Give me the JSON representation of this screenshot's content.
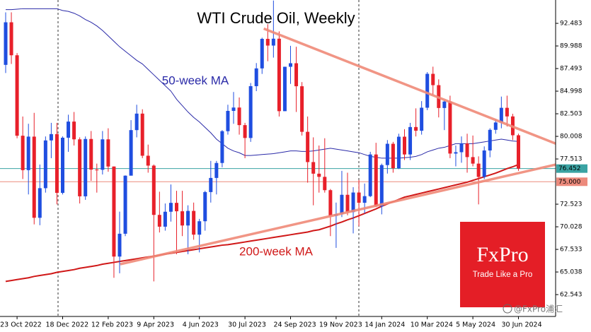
{
  "chart_data": {
    "type": "candlestick",
    "title": "WTI Crude Oil, Weekly",
    "categories": [
      null,
      null,
      "23 Oct 2022",
      null,
      null,
      null,
      null,
      null,
      null,
      null,
      "18 Dec 2022",
      null,
      null,
      null,
      null,
      null,
      null,
      null,
      "12 Feb 2023",
      null,
      null,
      null,
      null,
      null,
      null,
      null,
      "9 Apr 2023",
      null,
      null,
      null,
      null,
      null,
      null,
      null,
      "4 Jun 2023",
      null,
      null,
      null,
      null,
      null,
      null,
      null,
      "30 Jul 2023",
      null,
      null,
      null,
      null,
      null,
      null,
      null,
      "24 Sep 2023",
      null,
      null,
      null,
      null,
      null,
      null,
      null,
      "19 Nov 2023",
      null,
      null,
      null,
      null,
      null,
      null,
      null,
      "14 Jan 2024",
      null,
      null,
      null,
      null,
      null,
      null,
      null,
      "10 Mar 2024",
      null,
      null,
      null,
      null,
      null,
      null,
      null,
      "5 May 2024",
      null,
      null,
      null,
      null,
      null,
      null,
      null,
      "30 Jun 2024"
    ],
    "candles": {
      "up_color": "#1f4ee0",
      "down_color": "#e8202a",
      "open": [
        87.9,
        92.6,
        88.96,
        80.08,
        76.28,
        79.98,
        71.02,
        74.29,
        79.56,
        80.26,
        73.77,
        79.86,
        81.64,
        79.68,
        73.39,
        79.72,
        76.34,
        76.32,
        79.68,
        76.68,
        66.74,
        69.26,
        75.67,
        80.7,
        82.52,
        77.87,
        76.78,
        71.34,
        70.04,
        71.69,
        72.67,
        71.74,
        70.17,
        71.78,
        69.16,
        70.64,
        73.86,
        75.42,
        77.07,
        80.58,
        82.82,
        83.19,
        81.25,
        79.83,
        85.55,
        87.51,
        90.77,
        90.03,
        90.79,
        82.79,
        87.69,
        88.08,
        85.54,
        80.51,
        77.17,
        75.89,
        75.54,
        74.07,
        71.23,
        71.43,
        73.56,
        71.65,
        73.81,
        72.68,
        73.41,
        78.01,
        72.28,
        76.84,
        79.19,
        76.49,
        79.97,
        78.01,
        81.04,
        80.63,
        83.17,
        86.91,
        85.66,
        83.14,
        83.85,
        78.11,
        78.26,
        79.23,
        77.72,
        77.0,
        75.53,
        78.45,
        80.73,
        81.54,
        83.16,
        82.21,
        80.13
      ],
      "high": [
        93.7,
        93.7,
        89.2,
        82.2,
        81.4,
        82.6,
        76.9,
        80.0,
        81.5,
        81.5,
        80.0,
        82.4,
        82.7,
        79.9,
        80.0,
        80.6,
        77.0,
        80.6,
        80.9,
        76.7,
        71.7,
        75.7,
        81.8,
        83.5,
        83.0,
        79.1,
        76.9,
        73.9,
        72.6,
        74.7,
        74.0,
        74.0,
        72.4,
        72.7,
        70.9,
        74.0,
        77.3,
        77.3,
        80.7,
        83.5,
        84.9,
        84.3,
        81.5,
        85.9,
        88.1,
        90.9,
        92.4,
        95.0,
        91.6,
        87.7,
        90.0,
        89.9,
        86.0,
        82.2,
        79.9,
        79.0,
        79.8,
        74.2,
        72.7,
        76.2,
        76.0,
        74.4,
        75.2,
        74.8,
        78.3,
        79.3,
        77.0,
        79.6,
        79.4,
        80.3,
        80.8,
        81.5,
        83.1,
        83.9,
        87.1,
        87.7,
        86.3,
        84.0,
        84.5,
        79.0,
        80.0,
        80.3,
        80.1,
        77.8,
        78.9,
        80.9,
        81.9,
        84.4,
        84.5,
        82.5,
        80.3
      ],
      "low": [
        87.0,
        88.0,
        79.8,
        75.3,
        73.6,
        70.3,
        70.2,
        73.8,
        77.6,
        72.5,
        73.6,
        78.3,
        79.0,
        72.6,
        73.0,
        75.1,
        73.8,
        75.8,
        76.1,
        64.4,
        64.9,
        69.0,
        75.7,
        79.9,
        77.6,
        76.0,
        64.0,
        69.4,
        69.6,
        70.6,
        67.0,
        69.0,
        67.0,
        68.6,
        67.2,
        69.6,
        72.7,
        73.6,
        76.6,
        80.2,
        81.4,
        80.2,
        77.6,
        79.4,
        85.0,
        86.9,
        88.3,
        88.7,
        82.2,
        82.8,
        85.8,
        82.7,
        80.1,
        74.9,
        72.4,
        73.8,
        73.8,
        69.0,
        67.7,
        71.1,
        71.3,
        69.3,
        70.1,
        71.5,
        73.3,
        72.2,
        71.4,
        75.9,
        76.0,
        76.4,
        77.4,
        77.4,
        80.0,
        80.2,
        82.9,
        84.6,
        82.1,
        80.7,
        77.6,
        76.7,
        77.1,
        76.0,
        76.7,
        72.5,
        75.3,
        77.7,
        80.3,
        80.9,
        81.1,
        79.6,
        76.2
      ],
      "close": [
        92.6,
        88.96,
        80.08,
        76.28,
        79.98,
        71.02,
        74.29,
        79.56,
        80.26,
        73.77,
        79.86,
        81.64,
        79.68,
        73.39,
        79.72,
        76.34,
        76.32,
        79.68,
        76.68,
        66.74,
        69.26,
        75.67,
        80.7,
        82.52,
        77.87,
        76.78,
        71.34,
        70.04,
        71.69,
        72.67,
        71.74,
        70.17,
        71.78,
        69.16,
        70.64,
        73.86,
        75.42,
        77.07,
        80.58,
        82.82,
        83.19,
        81.25,
        79.83,
        85.55,
        87.51,
        90.77,
        90.03,
        90.79,
        82.79,
        87.69,
        88.08,
        85.54,
        80.51,
        77.17,
        75.89,
        75.54,
        74.07,
        71.23,
        71.43,
        73.56,
        71.65,
        73.81,
        72.68,
        73.41,
        78.01,
        72.28,
        76.84,
        79.19,
        76.49,
        79.97,
        78.01,
        81.04,
        80.63,
        83.17,
        86.91,
        85.66,
        83.14,
        83.85,
        78.11,
        78.26,
        79.23,
        77.72,
        77.0,
        75.53,
        78.45,
        80.73,
        81.54,
        83.16,
        82.21,
        80.13,
        76.45
      ]
    },
    "series": [
      {
        "name": "50-week MA",
        "color": "#2a2aa8",
        "values": [
          94.0,
          94.0,
          94.05,
          94.1,
          94.1,
          94.1,
          94.1,
          94.1,
          94.1,
          94.1,
          93.9,
          93.8,
          93.6,
          93.3,
          92.9,
          92.6,
          92.2,
          91.7,
          91.1,
          90.5,
          89.9,
          89.4,
          88.9,
          88.4,
          88.0,
          87.4,
          86.8,
          86.2,
          85.6,
          85.0,
          84.1,
          83.4,
          82.7,
          82.1,
          81.6,
          81.0,
          80.4,
          79.7,
          79.2,
          78.7,
          78.4,
          78.2,
          77.9,
          77.9,
          77.95,
          78.0,
          78.05,
          78.1,
          78.2,
          78.3,
          78.4,
          78.4,
          78.35,
          78.35,
          78.4,
          78.5,
          78.6,
          78.7,
          78.6,
          78.5,
          78.4,
          78.3,
          78.2,
          78.0,
          77.8,
          77.7,
          77.6,
          77.6,
          77.6,
          77.6,
          77.65,
          77.7,
          77.8,
          78.0,
          78.3,
          78.5,
          78.7,
          78.8,
          79.0,
          79.2,
          79.2,
          79.2,
          79.2,
          79.3,
          79.4,
          79.5,
          79.6,
          79.7,
          79.6,
          79.5,
          79.45
        ]
      },
      {
        "name": "200-week MA",
        "color": "#d01818",
        "values": [
          64.0,
          64.1,
          64.2,
          64.3,
          64.4,
          64.55,
          64.65,
          64.75,
          64.85,
          65.0,
          65.1,
          65.2,
          65.3,
          65.45,
          65.55,
          65.65,
          65.75,
          65.9,
          66.0,
          66.1,
          66.2,
          66.3,
          66.4,
          66.5,
          66.6,
          66.7,
          66.8,
          66.9,
          67.0,
          67.1,
          67.2,
          67.3,
          67.4,
          67.5,
          67.6,
          67.7,
          67.8,
          67.9,
          68.0,
          68.05,
          68.15,
          68.25,
          68.35,
          68.45,
          68.55,
          68.65,
          68.75,
          68.85,
          68.95,
          69.05,
          69.15,
          69.25,
          69.35,
          69.45,
          69.6,
          69.7,
          69.9,
          70.1,
          70.35,
          70.55,
          70.8,
          71.0,
          71.25,
          71.5,
          71.75,
          72.0,
          72.3,
          72.55,
          72.8,
          73.05,
          73.3,
          73.45,
          73.6,
          73.75,
          73.9,
          74.05,
          74.2,
          74.35,
          74.5,
          74.65,
          74.8,
          74.95,
          75.15,
          75.35,
          75.55,
          75.75,
          75.95,
          76.2,
          76.45,
          76.65,
          76.9
        ]
      }
    ],
    "trendlines": [
      {
        "color": "#f08a78",
        "x": [
          45.3,
          97.1
        ],
        "values": [
          91.9,
          79.07
        ]
      },
      {
        "color": "#f08a78",
        "x": [
          20.1,
          97.1
        ],
        "values": [
          65.9,
          76.97
        ]
      }
    ],
    "price_lines": [
      {
        "value": 76.452,
        "color": "#3aa3a3"
      },
      {
        "value": 75,
        "label": "75.000",
        "color": "#ec8a7c"
      }
    ],
    "ylim": [
      60.13,
      95.06
    ],
    "yticks": [
      92.483,
      89.988,
      87.493,
      84.998,
      82.503,
      80.008,
      77.513,
      72.523,
      70.028,
      67.533,
      65.038,
      62.543
    ],
    "logo": {
      "name": "FxPro",
      "tagline": "Trade Like a Pro"
    },
    "watermark": "@FxPro浦汇"
  }
}
